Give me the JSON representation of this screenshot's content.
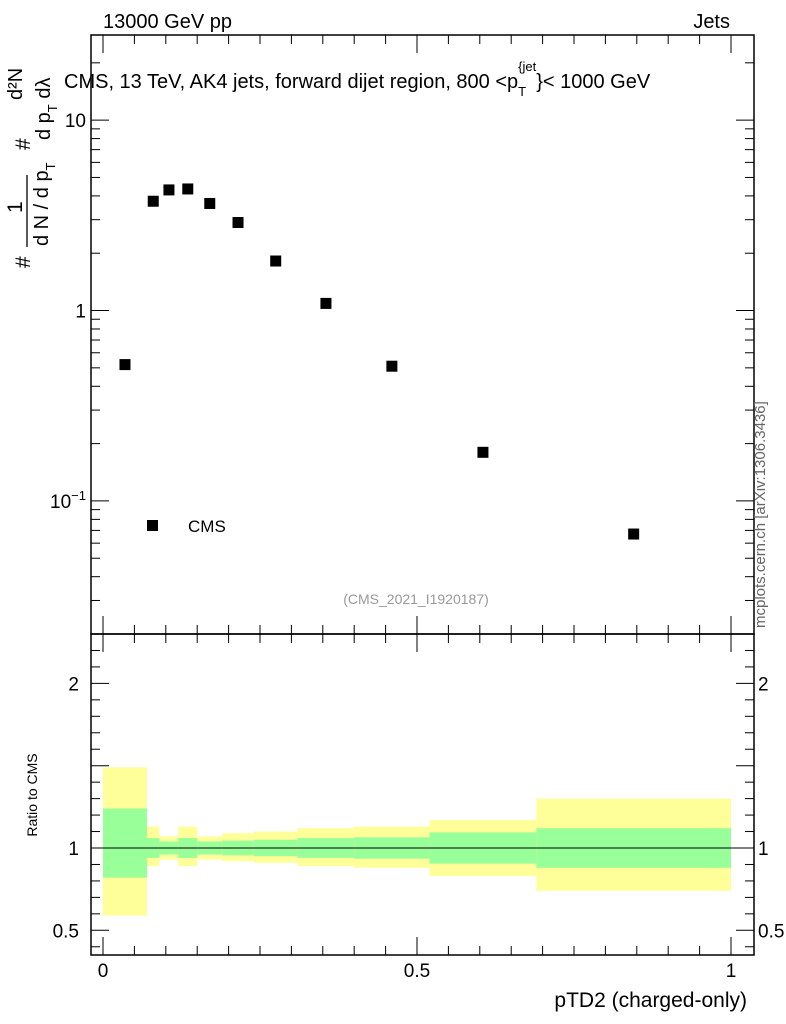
{
  "header": {
    "left": "13000 GeV pp",
    "right": "Jets"
  },
  "watermark": "mcplots.cern.ch [arXiv:1306.3436]",
  "colors": {
    "inner_band": "#99ff99",
    "outer_band": "#ffff99",
    "marker": "#000000"
  },
  "chart_data": [
    {
      "type": "scatter",
      "title": "CMS, 13 TeV, AK4 jets, forward dijet region, 800 <p_T^{jet}< 1000 GeV",
      "title_parts": {
        "before": "CMS, 13 TeV, AK4 jets, forward dijet region, 800 <p",
        "sub": "T",
        "sup": "{jet",
        "after": "}< 1000 GeV"
      },
      "ylabel": "1/(dN/dp_T) d²N/(dp_T dλ)",
      "ylabel_parts": {
        "hash": "#",
        "numerator": "1",
        "denominator": "d N / d p",
        "denominator_sub": "T",
        "right_numerator": "d²N",
        "right_denominator": "d p",
        "right_denominator_sub": "T",
        "right_denominator_tail": " dλ"
      },
      "yscale": "log",
      "ylim": [
        0.02,
        28
      ],
      "xlim": [
        -0.015,
        1.0
      ],
      "y_ticks": [
        {
          "value": 10,
          "label": "10"
        },
        {
          "value": 1,
          "label": "1"
        },
        {
          "value": 0.1,
          "label_base": "10",
          "label_exp": "−1"
        }
      ],
      "legend": {
        "label": "CMS",
        "position": "bottom-left"
      },
      "annotation": "(CMS_2021_I1920187)",
      "series": [
        {
          "name": "CMS",
          "x": [
            0.035,
            0.08,
            0.105,
            0.135,
            0.17,
            0.215,
            0.275,
            0.355,
            0.46,
            0.605,
            0.845
          ],
          "y": [
            0.52,
            3.75,
            4.3,
            4.35,
            3.65,
            2.9,
            1.82,
            1.09,
            0.51,
            0.18,
            0.067
          ]
        }
      ]
    },
    {
      "type": "area",
      "ylabel": "Ratio to CMS",
      "xlabel": "pTD2 (charged-only)",
      "xlim": [
        -0.015,
        1.0
      ],
      "ylim": [
        0.35,
        2.3
      ],
      "x_ticks": [
        {
          "value": 0,
          "label": "0"
        },
        {
          "value": 0.5,
          "label": "0.5"
        },
        {
          "value": 1,
          "label": "1"
        }
      ],
      "y_ticks": [
        {
          "value": 0.5,
          "label": "0.5"
        },
        {
          "value": 1,
          "label": "1"
        },
        {
          "value": 2,
          "label": "2"
        }
      ],
      "reference_line": 1,
      "bins": [
        {
          "lo": 0.0,
          "hi": 0.07,
          "inner": [
            0.82,
            1.24
          ],
          "outer": [
            0.59,
            1.49
          ]
        },
        {
          "lo": 0.07,
          "hi": 0.09,
          "inner": [
            0.94,
            1.06
          ],
          "outer": [
            0.89,
            1.13
          ]
        },
        {
          "lo": 0.09,
          "hi": 0.12,
          "inner": [
            0.96,
            1.04
          ],
          "outer": [
            0.93,
            1.07
          ]
        },
        {
          "lo": 0.12,
          "hi": 0.15,
          "inner": [
            0.94,
            1.06
          ],
          "outer": [
            0.89,
            1.13
          ]
        },
        {
          "lo": 0.15,
          "hi": 0.19,
          "inner": [
            0.96,
            1.04
          ],
          "outer": [
            0.93,
            1.07
          ]
        },
        {
          "lo": 0.19,
          "hi": 0.24,
          "inner": [
            0.955,
            1.045
          ],
          "outer": [
            0.92,
            1.09
          ]
        },
        {
          "lo": 0.24,
          "hi": 0.31,
          "inner": [
            0.95,
            1.05
          ],
          "outer": [
            0.91,
            1.1
          ]
        },
        {
          "lo": 0.31,
          "hi": 0.4,
          "inner": [
            0.94,
            1.06
          ],
          "outer": [
            0.89,
            1.12
          ]
        },
        {
          "lo": 0.4,
          "hi": 0.52,
          "inner": [
            0.935,
            1.065
          ],
          "outer": [
            0.88,
            1.13
          ]
        },
        {
          "lo": 0.52,
          "hi": 0.69,
          "inner": [
            0.905,
            1.095
          ],
          "outer": [
            0.83,
            1.17
          ]
        },
        {
          "lo": 0.69,
          "hi": 1.0,
          "inner": [
            0.88,
            1.12
          ],
          "outer": [
            0.74,
            1.3
          ]
        }
      ]
    }
  ]
}
